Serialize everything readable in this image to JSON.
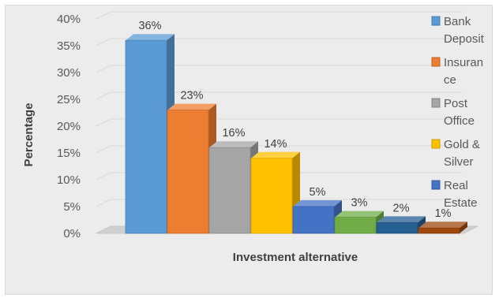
{
  "chart_data": {
    "type": "bar",
    "title": "",
    "xlabel": "Investment alternative",
    "ylabel": "Percentage",
    "ylim": [
      0,
      40
    ],
    "y_ticks": [
      "0%",
      "5%",
      "10%",
      "15%",
      "20%",
      "25%",
      "30%",
      "35%",
      "40%"
    ],
    "grid": true,
    "legend_position": "right",
    "categories": [
      "Bank Deposit",
      "Insurance",
      "Post Office",
      "Gold & Silver",
      "Real Estate",
      "",
      "",
      ""
    ],
    "values": [
      36,
      23,
      16,
      14,
      5,
      3,
      2,
      1
    ],
    "data_labels": [
      "36%",
      "23%",
      "16%",
      "14%",
      "5%",
      "3%",
      "2%",
      "1%"
    ],
    "colors": [
      "#5b9bd5",
      "#ed7d31",
      "#a5a5a5",
      "#ffc000",
      "#4472c4",
      "#70ad47",
      "#255e91",
      "#9e480e"
    ],
    "legend": [
      {
        "lines": [
          "Bank",
          "Deposit"
        ],
        "color": "#5b9bd5"
      },
      {
        "lines": [
          "Insuran",
          "ce"
        ],
        "color": "#ed7d31"
      },
      {
        "lines": [
          "Post",
          "Office"
        ],
        "color": "#a5a5a5"
      },
      {
        "lines": [
          "Gold &",
          "Silver"
        ],
        "color": "#ffc000"
      },
      {
        "lines": [
          "Real",
          "Estate"
        ],
        "color": "#4472c4"
      }
    ]
  }
}
